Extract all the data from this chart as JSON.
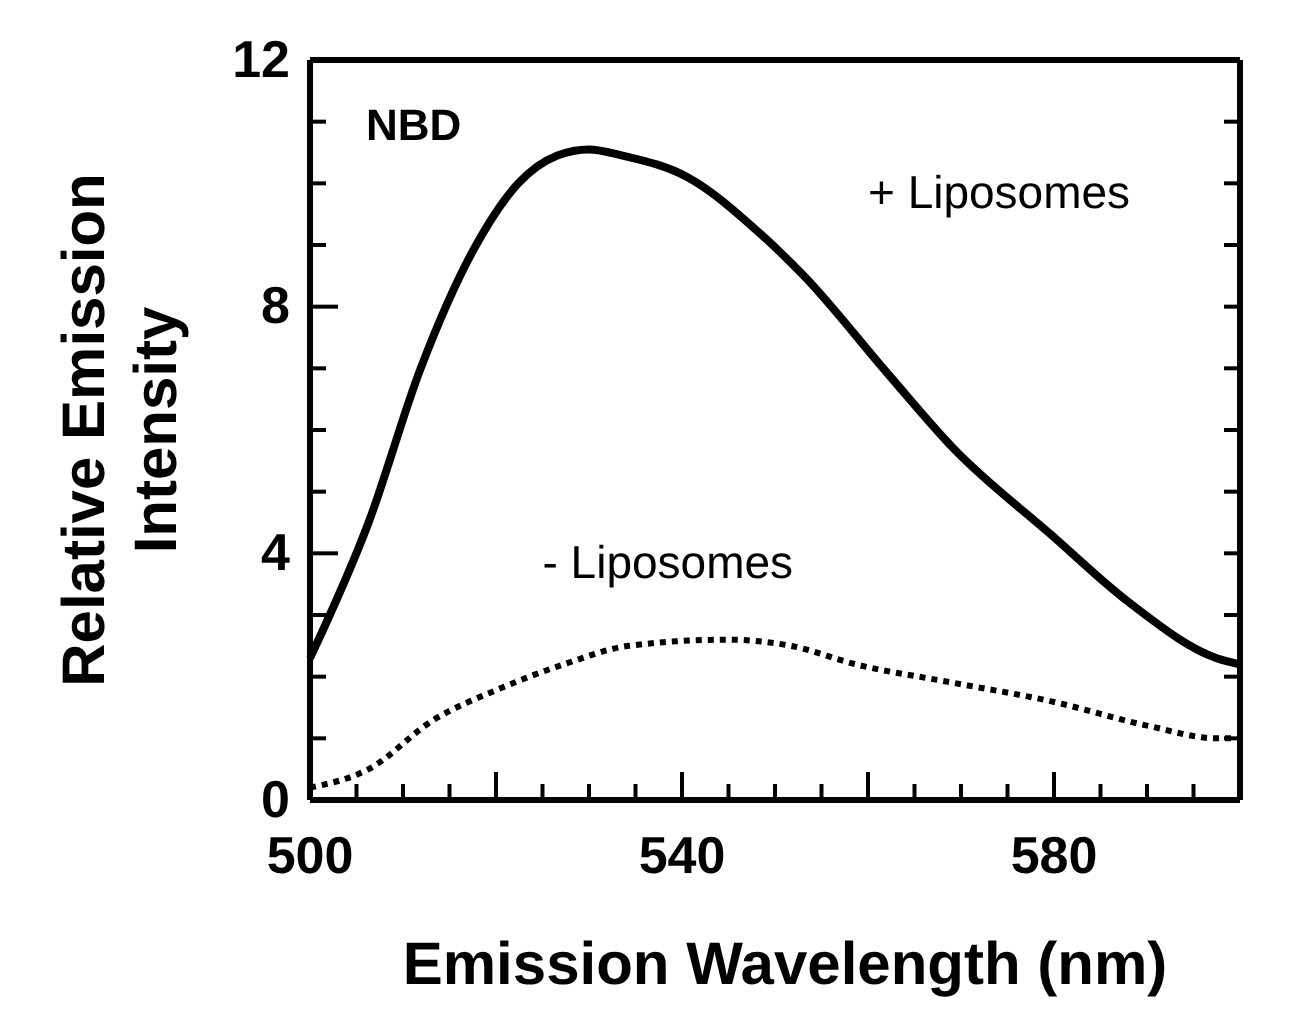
{
  "chart_data": {
    "type": "line",
    "xlabel": "Emission Wavelength (nm)",
    "ylabel": "Relative Emission Intensity",
    "annotations": [
      "NBD"
    ],
    "xlim": [
      500,
      600
    ],
    "ylim": [
      0,
      12
    ],
    "xticks": [
      500,
      {
        "value": 505,
        "label": null
      },
      {
        "value": 510,
        "label": null
      },
      {
        "value": 515,
        "label": null
      },
      {
        "value": 520,
        "label": null
      },
      {
        "value": 525,
        "label": null
      },
      {
        "value": 530,
        "label": null
      },
      {
        "value": 535,
        "label": null
      },
      540,
      {
        "value": 545,
        "label": null
      },
      {
        "value": 550,
        "label": null
      },
      {
        "value": 555,
        "label": null
      },
      {
        "value": 560,
        "label": null
      },
      {
        "value": 565,
        "label": null
      },
      {
        "value": 570,
        "label": null
      },
      {
        "value": 575,
        "label": null
      },
      580,
      {
        "value": 585,
        "label": null
      },
      {
        "value": 590,
        "label": null
      },
      {
        "value": 595,
        "label": null
      }
    ],
    "yticks": [
      0,
      {
        "value": 1,
        "label": null
      },
      {
        "value": 2,
        "label": null
      },
      {
        "value": 3,
        "label": null
      },
      4,
      {
        "value": 5,
        "label": null
      },
      {
        "value": 6,
        "label": null
      },
      {
        "value": 7,
        "label": null
      },
      8,
      {
        "value": 9,
        "label": null
      },
      {
        "value": 10,
        "label": null
      },
      {
        "value": 11,
        "label": null
      },
      12
    ],
    "grid": false,
    "legend": "top right",
    "series": [
      {
        "name": "+ Liposomes",
        "color": "#000000",
        "line_style": "solid",
        "x": [
          500,
          506.3,
          511.9,
          517.5,
          522.4,
          526.6,
          530,
          533.6,
          540.6,
          548.3,
          553.1,
          562.2,
          569.2,
          579.7,
          588.1,
          597.5,
          600
        ],
        "values": [
          2.3,
          4.5,
          7.0,
          8.9,
          10.0,
          10.45,
          10.55,
          10.45,
          10.1,
          9.2,
          8.5,
          6.9,
          5.7,
          4.3,
          3.2,
          2.3,
          2.2
        ]
      },
      {
        "name": "- Liposomes",
        "color": "#000000",
        "line_style": "dotted",
        "x": [
          500,
          506.3,
          513.3,
          520.3,
          527.3,
          534.3,
          544.8,
          551.7,
          558.7,
          569.2,
          579.7,
          590.2,
          597.5,
          600
        ],
        "values": [
          0.2,
          0.5,
          1.3,
          1.8,
          2.2,
          2.5,
          2.6,
          2.5,
          2.2,
          1.9,
          1.6,
          1.2,
          1.0,
          1.0
        ]
      }
    ]
  }
}
